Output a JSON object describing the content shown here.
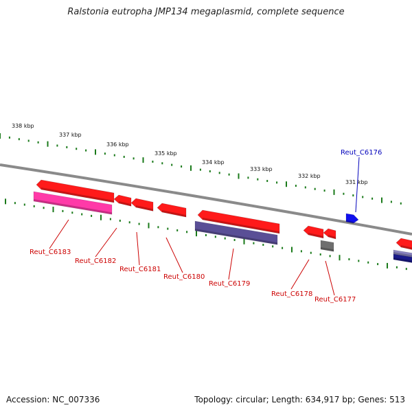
{
  "title": "Ralstonia eutropha JMP134 megaplasmid, complete sequence",
  "footer": {
    "accession": "Accession: NC_007336",
    "topology": "Topology: circular; Length: 634,917 bp; Genes: 513"
  },
  "colors": {
    "backbone": "#8a8a8a",
    "tick": "#1a7a1a",
    "forward_gene": "#ff1a1a",
    "reverse_gene": "#ff1a1a",
    "pink_feature": "#ff3aa8",
    "purple_feature": "#5a4f96",
    "gray_feature": "#6e6e6e",
    "blue_gene": "#1010ee",
    "navy_feature": "#1a1a8a",
    "label_red": "#cc0000",
    "label_blue": "#0000bb"
  },
  "scale": {
    "unit": "kbp",
    "tick_labels": [
      "338 kbp",
      "337 kbp",
      "336 kbp",
      "335 kbp",
      "334 kbp",
      "333 kbp",
      "332 kbp",
      "331 kbp"
    ]
  },
  "genes": [
    {
      "label": "Reut_C6183",
      "color": "label_red"
    },
    {
      "label": "Reut_C6182",
      "color": "label_red"
    },
    {
      "label": "Reut_C6181",
      "color": "label_red"
    },
    {
      "label": "Reut_C6180",
      "color": "label_red"
    },
    {
      "label": "Reut_C6179",
      "color": "label_red"
    },
    {
      "label": "Reut_C6178",
      "color": "label_red"
    },
    {
      "label": "Reut_C6177",
      "color": "label_red"
    },
    {
      "label": "Reut_C6176",
      "color": "label_blue"
    }
  ]
}
